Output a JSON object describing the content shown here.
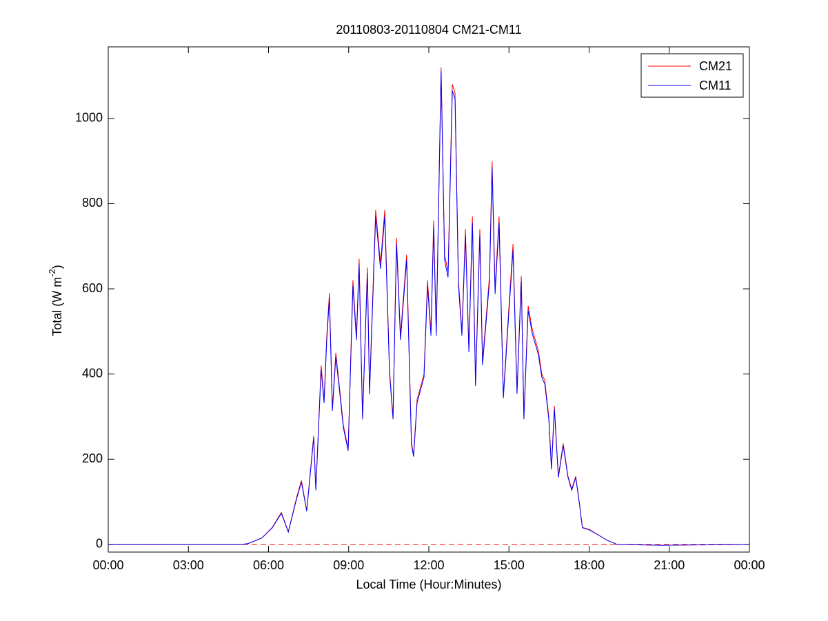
{
  "chart_data": {
    "type": "line",
    "title": "20110803-20110804 CM21-CM11",
    "xlabel": "Local Time (Hour:Minutes)",
    "ylabel": {
      "text": "Total (W m",
      "sup": "-2",
      "end": ")"
    },
    "x": [
      0,
      5,
      5.24,
      5.75,
      6.14,
      6.48,
      6.74,
      7.05,
      7.23,
      7.43,
      7.69,
      7.77,
      7.97,
      8.08,
      8.18,
      8.28,
      8.39,
      8.52,
      8.67,
      8.8,
      8.98,
      9.16,
      9.29,
      9.39,
      9.52,
      9.7,
      9.78,
      10.01,
      10.19,
      10.35,
      10.53,
      10.66,
      10.79,
      10.94,
      11.17,
      11.35,
      11.43,
      11.56,
      11.82,
      11.95,
      12.08,
      12.18,
      12.28,
      12.46,
      12.59,
      12.72,
      12.88,
      12.98,
      13.11,
      13.24,
      13.37,
      13.5,
      13.63,
      13.75,
      13.91,
      14.01,
      14.27,
      14.37,
      14.48,
      14.63,
      14.79,
      14.97,
      15.15,
      15.3,
      15.46,
      15.56,
      15.72,
      15.87,
      16.1,
      16.23,
      16.34,
      16.49,
      16.59,
      16.7,
      16.85,
      17.03,
      17.21,
      17.35,
      17.5,
      17.63,
      17.75,
      18.01,
      18.4,
      18.66,
      19.05,
      20.72,
      24
    ],
    "series": [
      {
        "name": "CM21",
        "color": "#ff0000",
        "values": [
          0,
          0,
          2,
          15,
          40,
          75,
          30,
          110,
          150,
          80,
          255,
          130,
          420,
          340,
          490,
          590,
          320,
          450,
          360,
          280,
          225,
          620,
          490,
          670,
          300,
          650,
          360,
          785,
          660,
          785,
          410,
          300,
          720,
          490,
          680,
          240,
          210,
          340,
          400,
          620,
          500,
          760,
          500,
          1120,
          680,
          640,
          1080,
          1060,
          620,
          500,
          740,
          460,
          770,
          380,
          740,
          430,
          630,
          900,
          600,
          770,
          350,
          530,
          705,
          360,
          630,
          300,
          560,
          505,
          455,
          400,
          385,
          300,
          180,
          325,
          160,
          237,
          160,
          130,
          160,
          100,
          40,
          35,
          20,
          10,
          0,
          -2,
          0
        ]
      },
      {
        "name": "CM11",
        "color": "#0000ff",
        "values": [
          0,
          0,
          2,
          15,
          39,
          73,
          29,
          107,
          146,
          78,
          250,
          127,
          410,
          332,
          480,
          578,
          313,
          440,
          352,
          274,
          220,
          607,
          480,
          657,
          294,
          637,
          352,
          770,
          647,
          770,
          402,
          294,
          706,
          480,
          667,
          235,
          206,
          333,
          392,
          608,
          490,
          745,
          490,
          1110,
          667,
          627,
          1065,
          1045,
          608,
          490,
          725,
          451,
          755,
          372,
          725,
          421,
          617,
          885,
          588,
          755,
          343,
          519,
          690,
          353,
          617,
          294,
          549,
          495,
          446,
          392,
          377,
          294,
          176,
          318,
          157,
          232,
          157,
          127,
          157,
          98,
          39,
          34,
          20,
          10,
          0,
          -2,
          0
        ]
      }
    ],
    "xlim": [
      0,
      24
    ],
    "xticks": [
      {
        "value": 0,
        "label": "00:00"
      },
      {
        "value": 3,
        "label": "03:00"
      },
      {
        "value": 6,
        "label": "06:00"
      },
      {
        "value": 9,
        "label": "09:00"
      },
      {
        "value": 12,
        "label": "12:00"
      },
      {
        "value": 15,
        "label": "15:00"
      },
      {
        "value": 18,
        "label": "18:00"
      },
      {
        "value": 21,
        "label": "21:00"
      },
      {
        "value": 24,
        "label": "00:00"
      }
    ],
    "ylim": [
      -18,
      1168
    ],
    "yticks": [
      0,
      200,
      400,
      600,
      800,
      1000
    ],
    "reference_line": {
      "value": 0,
      "color": "#ff0000"
    },
    "legend": "upper right",
    "grid": false
  }
}
